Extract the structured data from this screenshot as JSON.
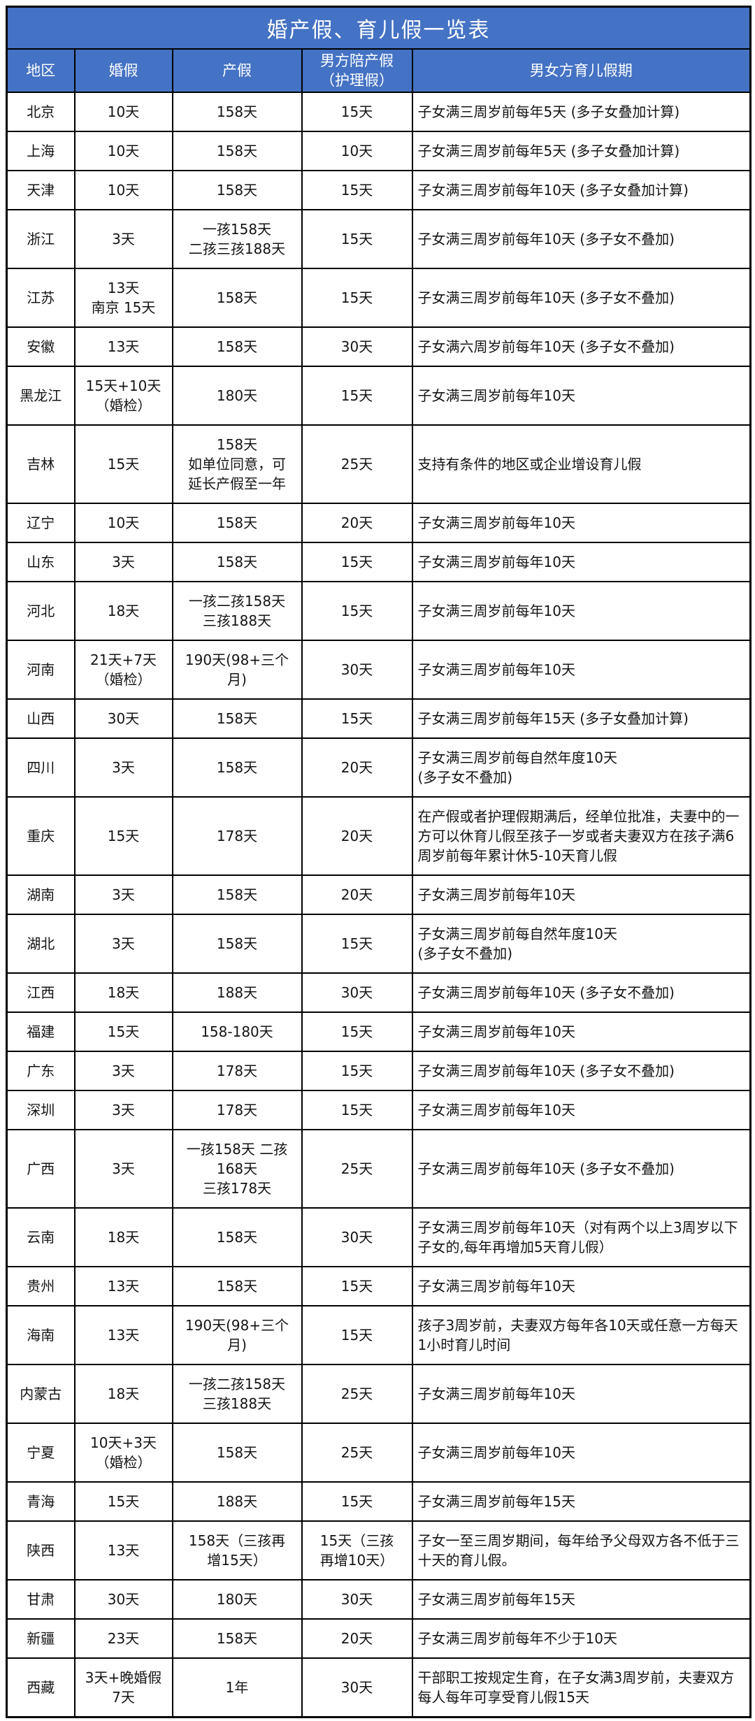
{
  "title": "婚产假、育儿假一览表",
  "table": {
    "columns": [
      "地区",
      "婚假",
      "产假",
      "男方陪产假\n（护理假）",
      "男女方育儿假期"
    ],
    "rows": [
      [
        "北京",
        "10天",
        "158天",
        "15天",
        "子女满三周岁前每年5天 (多子女叠加计算)"
      ],
      [
        "上海",
        "10天",
        "158天",
        "10天",
        "子女满三周岁前每年5天 (多子女叠加计算)"
      ],
      [
        "天津",
        "10天",
        "158天",
        "15天",
        "子女满三周岁前每年10天 (多子女叠加计算)"
      ],
      [
        "浙江",
        "3天",
        "一孩158天\n二孩三孩188天",
        "15天",
        "子女满三周岁前每年10天 (多子女不叠加)"
      ],
      [
        "江苏",
        "13天\n南京 15天",
        "158天",
        "15天",
        "子女满三周岁前每年10天 (多子女不叠加)"
      ],
      [
        "安徽",
        "13天",
        "158天",
        "30天",
        "子女满六周岁前每年10天 (多子女不叠加)"
      ],
      [
        "黑龙江",
        "15天+10天\n（婚检）",
        "180天",
        "15天",
        "子女满三周岁前每年10天"
      ],
      [
        "吉林",
        "15天",
        "158天\n如单位同意，可\n延长产假至一年",
        "25天",
        "支持有条件的地区或企业增设育儿假"
      ],
      [
        "辽宁",
        "10天",
        "158天",
        "20天",
        "子女满三周岁前每年10天"
      ],
      [
        "山东",
        "3天",
        "158天",
        "15天",
        "子女满三周岁前每年10天"
      ],
      [
        "河北",
        "18天",
        "一孩二孩158天\n三孩188天",
        "15天",
        "子女满三周岁前每年10天"
      ],
      [
        "河南",
        "21天+7天\n（婚检）",
        "190天(98+三个\n月)",
        "30天",
        "子女满三周岁前每年10天"
      ],
      [
        "山西",
        "30天",
        "158天",
        "15天",
        "子女满三周岁前每年15天 (多子女叠加计算)"
      ],
      [
        "四川",
        "3天",
        "158天",
        "20天",
        "子女满三周岁前每自然年度10天\n(多子女不叠加)"
      ],
      [
        "重庆",
        "15天",
        "178天",
        "20天",
        "在产假或者护理假期满后，经单位批准，夫妻中的一方可以休育儿假至孩子一岁或者夫妻双方在孩子满6周岁前每年累计休5-10天育儿假"
      ],
      [
        "湖南",
        "3天",
        "158天",
        "20天",
        "子女满三周岁前每年10天"
      ],
      [
        "湖北",
        "3天",
        "158天",
        "15天",
        "子女满三周岁前每自然年度10天\n(多子女不叠加)"
      ],
      [
        "江西",
        "18天",
        "188天",
        "30天",
        "子女满三周岁前每年10天 (多子女不叠加)"
      ],
      [
        "福建",
        "15天",
        "158-180天",
        "15天",
        "子女满三周岁前每年10天"
      ],
      [
        "广东",
        "3天",
        "178天",
        "15天",
        "子女满三周岁前每年10天 (多子女不叠加)"
      ],
      [
        "深圳",
        "3天",
        "178天",
        "15天",
        "子女满三周岁前每年10天"
      ],
      [
        "广西",
        "3天",
        "一孩158天 二孩\n168天\n三孩178天",
        "25天",
        "子女满三周岁前每年10天 (多子女不叠加)"
      ],
      [
        "云南",
        "18天",
        "158天",
        "30天",
        "子女满三周岁前每年10天（对有两个以上3周岁以下子女的,每年再增加5天育儿假）"
      ],
      [
        "贵州",
        "13天",
        "158天",
        "15天",
        "子女满三周岁前每年10天"
      ],
      [
        "海南",
        "13天",
        "190天(98+三个\n月)",
        "15天",
        "孩子3周岁前，夫妻双方每年各10天或任意一方每天1小时育儿时间"
      ],
      [
        "内蒙古",
        "18天",
        "一孩二孩158天\n三孩188天",
        "25天",
        "子女满三周岁前每年10天"
      ],
      [
        "宁夏",
        "10天+3天\n（婚检）",
        "158天",
        "25天",
        "子女满三周岁前每年10天"
      ],
      [
        "青海",
        "15天",
        "188天",
        "15天",
        "子女满三周岁前每年15天"
      ],
      [
        "陕西",
        "13天",
        "158天（三孩再\n增15天）",
        "15天（三孩\n再增10天）",
        "子女一至三周岁期间，每年给予父母双方各不低于三十天的育儿假。"
      ],
      [
        "甘肃",
        "30天",
        "180天",
        "30天",
        "子女满三周岁前每年15天"
      ],
      [
        "新疆",
        "23天",
        "158天",
        "20天",
        "子女满三周岁前每年不少于10天"
      ],
      [
        "西藏",
        "3天+晚婚假\n7天",
        "1年",
        "30天",
        "干部职工按规定生育，在子女满3周岁前，夫妻双方每人每年可享受育儿假15天"
      ]
    ]
  },
  "colors": {
    "header_bg": "#4472C4",
    "header_text": "#FFFFFF",
    "border": "#000000",
    "body_bg": "#FFFFFF",
    "body_text": "#141414"
  }
}
